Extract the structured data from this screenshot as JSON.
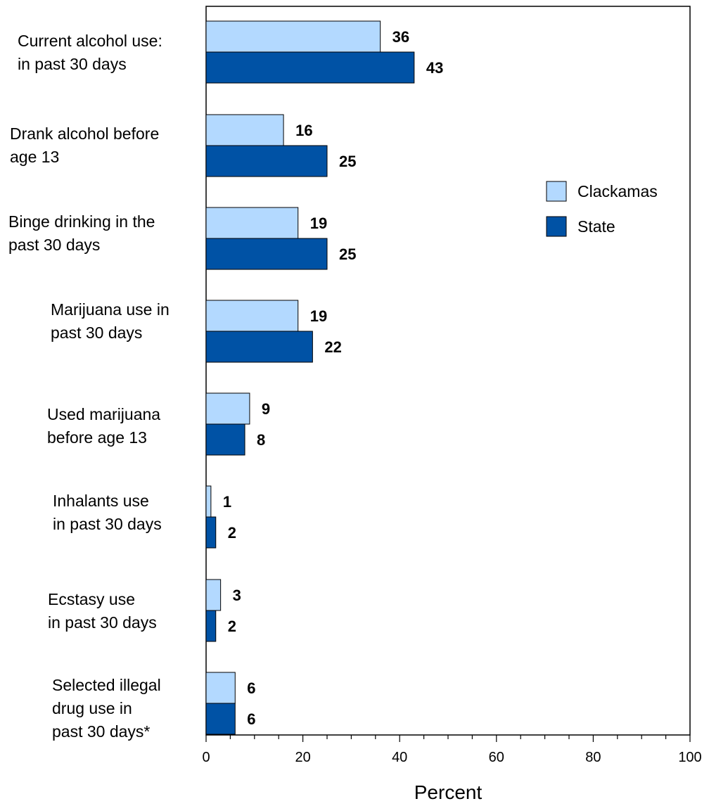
{
  "chart_data": {
    "type": "bar",
    "orientation": "horizontal",
    "categories": [
      "Current alcohol use:\nin past 30 days",
      "Drank alcohol before\nage 13",
      "Binge drinking in the\npast 30 days",
      "Marijuana use in\npast 30 days",
      "Used marijuana\nbefore age 13",
      "Inhalants use\nin past 30 days",
      "Ecstasy use\nin past 30 days",
      "Selected illegal\ndrug use in\npast 30 days*"
    ],
    "series": [
      {
        "name": "Clackamas",
        "color": "#b3d9ff",
        "values": [
          36,
          16,
          19,
          19,
          9,
          1,
          3,
          6
        ]
      },
      {
        "name": "State",
        "color": "#0052a5",
        "values": [
          43,
          25,
          25,
          22,
          8,
          2,
          2,
          6
        ]
      }
    ],
    "xlabel": "Percent",
    "xlim": [
      0,
      100
    ],
    "xticks": [
      0,
      20,
      40,
      60,
      80,
      100
    ],
    "legend_position": "right",
    "grid": false
  }
}
